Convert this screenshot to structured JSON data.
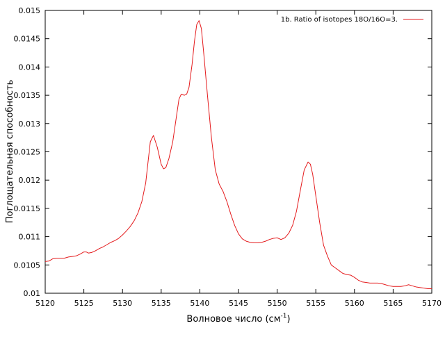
{
  "chart_data": {
    "type": "line",
    "title": "",
    "xlabel": "Волновое число (см",
    "xlabel_sup": "-1",
    "xlabel_close": ")",
    "ylabel": "Поглощательная способность",
    "xlim": [
      5120,
      5170
    ],
    "ylim": [
      0.01,
      0.015
    ],
    "xticks": [
      5120,
      5125,
      5130,
      5135,
      5140,
      5145,
      5150,
      5155,
      5160,
      5165,
      5170
    ],
    "xtick_labels": [
      "5120",
      "5125",
      "5130",
      "5135",
      "5140",
      "5145",
      "5150",
      "5155",
      "5160",
      "5165",
      "5170"
    ],
    "yticks": [
      0.01,
      0.0105,
      0.011,
      0.0115,
      0.012,
      0.0125,
      0.013,
      0.0135,
      0.014,
      0.0145,
      0.015
    ],
    "ytick_labels": [
      "0.01",
      "0.0105",
      "0.011",
      "0.0115",
      "0.012",
      "0.0125",
      "0.013",
      "0.0135",
      "0.014",
      "0.0145",
      "0.015"
    ],
    "grid": false,
    "legend_position": "top-right",
    "series": [
      {
        "name": "1b. Ratio of isotopes 18O/16O=3.",
        "color": "#e41a1c",
        "x": [
          5120,
          5120.5,
          5121,
          5121.5,
          5122,
          5122.5,
          5123,
          5123.5,
          5124,
          5124.5,
          5125,
          5125.3,
          5125.6,
          5126,
          5126.5,
          5127,
          5127.5,
          5128,
          5128.5,
          5129,
          5129.5,
          5130,
          5130.5,
          5131,
          5131.5,
          5132,
          5132.5,
          5133,
          5133.3,
          5133.6,
          5134,
          5134.5,
          5135,
          5135.3,
          5135.6,
          5136,
          5136.5,
          5137,
          5137.3,
          5137.6,
          5138,
          5138.3,
          5138.6,
          5139,
          5139.3,
          5139.6,
          5139.9,
          5140.2,
          5140.5,
          5141,
          5141.5,
          5142,
          5142.5,
          5143,
          5143.5,
          5144,
          5144.5,
          5145,
          5145.5,
          5146,
          5146.5,
          5147,
          5147.5,
          5148,
          5148.5,
          5149,
          5149.5,
          5150,
          5150.5,
          5151,
          5151.5,
          5152,
          5152.5,
          5153,
          5153.5,
          5154,
          5154.3,
          5154.6,
          5155,
          5155.5,
          5156,
          5156.5,
          5157,
          5157.5,
          5158,
          5158.5,
          5159,
          5159.5,
          5160,
          5160.5,
          5161,
          5161.5,
          5162,
          5162.5,
          5163,
          5163.5,
          5164,
          5164.5,
          5165,
          5165.5,
          5166,
          5166.5,
          5167,
          5167.5,
          5168,
          5168.5,
          5169,
          5169.5,
          5170
        ],
        "values": [
          0.01056,
          0.01057,
          0.01061,
          0.01062,
          0.01062,
          0.01062,
          0.01064,
          0.01065,
          0.01066,
          0.01069,
          0.01073,
          0.01073,
          0.01071,
          0.01072,
          0.01075,
          0.01079,
          0.01082,
          0.01086,
          0.0109,
          0.01093,
          0.01097,
          0.01103,
          0.0111,
          0.01118,
          0.01128,
          0.01142,
          0.01162,
          0.01195,
          0.01232,
          0.01268,
          0.01279,
          0.01258,
          0.01228,
          0.0122,
          0.01222,
          0.01238,
          0.01268,
          0.01315,
          0.01343,
          0.01352,
          0.0135,
          0.01352,
          0.01364,
          0.01405,
          0.01445,
          0.01475,
          0.01482,
          0.01468,
          0.01425,
          0.01348,
          0.01275,
          0.01218,
          0.01193,
          0.0118,
          0.01162,
          0.0114,
          0.0112,
          0.01105,
          0.01096,
          0.01092,
          0.0109,
          0.01089,
          0.01089,
          0.0109,
          0.01092,
          0.01095,
          0.01097,
          0.01098,
          0.01095,
          0.01098,
          0.01106,
          0.0112,
          0.01145,
          0.01182,
          0.01218,
          0.01232,
          0.01228,
          0.0121,
          0.01172,
          0.01125,
          0.01085,
          0.01066,
          0.0105,
          0.01045,
          0.0104,
          0.01035,
          0.01033,
          0.01032,
          0.01028,
          0.01023,
          0.0102,
          0.01019,
          0.01018,
          0.01018,
          0.01018,
          0.01017,
          0.01015,
          0.01013,
          0.01012,
          0.01012,
          0.01012,
          0.01013,
          0.01015,
          0.01013,
          0.01011,
          0.0101,
          0.01009,
          0.01008,
          0.01008
        ]
      }
    ]
  }
}
